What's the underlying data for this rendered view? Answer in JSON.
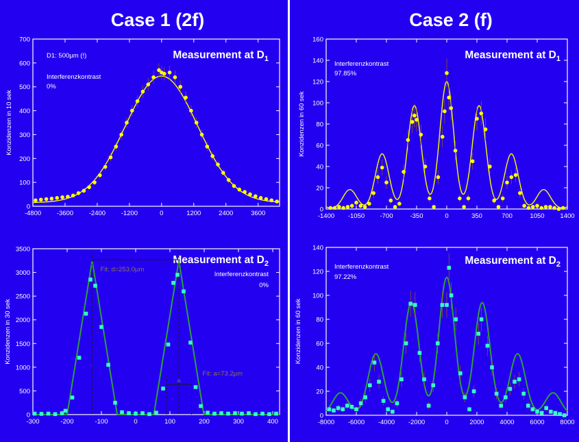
{
  "colors": {
    "background": "#2400f0",
    "frame": "#ffffff",
    "marker_d1": "#ffff00",
    "marker_d2": "#33ffc8",
    "line_d2": "#2e9e3a",
    "dashed_marker": "#1a1a1a"
  },
  "titles": {
    "case1": "Case 1 (2f)",
    "case2": "Case 2 (f)"
  },
  "chart_data": [
    {
      "id": "case1_d1",
      "type": "scatter",
      "title": "Measurement at D",
      "title_sub": "1",
      "ylabel": "Konzidenzen in 10 sek",
      "xlabel": "",
      "xlim": [
        -4800,
        4400
      ],
      "ylim": [
        0,
        700
      ],
      "xticks": [
        "-4800",
        "-3600",
        "-2400",
        "-1200",
        "0",
        "1200",
        "2400",
        "3600"
      ],
      "yticks": [
        "0",
        "100",
        "200",
        "300",
        "400",
        "500",
        "600",
        "700"
      ],
      "annotations": [
        "D1: 500µm (!)",
        "Interferenzkontrast",
        "0%"
      ],
      "marker": "circle",
      "model": {
        "kind": "gaussian",
        "amplitude": 530,
        "center": 0,
        "sigma": 1350,
        "baseline": 15
      },
      "points": [
        [
          -4700,
          25
        ],
        [
          -4500,
          28
        ],
        [
          -4300,
          30
        ],
        [
          -4100,
          32
        ],
        [
          -3900,
          35
        ],
        [
          -3700,
          38
        ],
        [
          -3500,
          40
        ],
        [
          -3300,
          45
        ],
        [
          -3100,
          55
        ],
        [
          -2900,
          65
        ],
        [
          -2700,
          80
        ],
        [
          -2500,
          100
        ],
        [
          -2300,
          130
        ],
        [
          -2100,
          165
        ],
        [
          -1900,
          205
        ],
        [
          -1700,
          250
        ],
        [
          -1500,
          300
        ],
        [
          -1300,
          350
        ],
        [
          -1100,
          400
        ],
        [
          -900,
          440
        ],
        [
          -700,
          480
        ],
        [
          -500,
          510
        ],
        [
          -300,
          540
        ],
        [
          -100,
          570
        ],
        [
          0,
          560
        ],
        [
          100,
          555
        ],
        [
          300,
          560
        ],
        [
          500,
          540
        ],
        [
          700,
          500
        ],
        [
          900,
          455
        ],
        [
          1100,
          400
        ],
        [
          1300,
          350
        ],
        [
          1500,
          300
        ],
        [
          1700,
          250
        ],
        [
          1900,
          210
        ],
        [
          2100,
          175
        ],
        [
          2300,
          140
        ],
        [
          2500,
          110
        ],
        [
          2700,
          85
        ],
        [
          2900,
          70
        ],
        [
          3100,
          60
        ],
        [
          3300,
          50
        ],
        [
          3500,
          42
        ],
        [
          3700,
          35
        ],
        [
          3900,
          30
        ],
        [
          4100,
          25
        ],
        [
          4300,
          20
        ]
      ]
    },
    {
      "id": "case2_d1",
      "type": "scatter",
      "title": "Measurement at D",
      "title_sub": "1",
      "ylabel": "Konzidenzen in 60 sek",
      "xlabel": "",
      "xlim": [
        -1400,
        1400
      ],
      "ylim": [
        0,
        160
      ],
      "xticks": [
        "-1400",
        "-1050",
        "-700",
        "-350",
        "0",
        "350",
        "700",
        "1050",
        "1400"
      ],
      "yticks": [
        "0",
        "20",
        "40",
        "60",
        "80",
        "100",
        "120",
        "140",
        "160"
      ],
      "annotations": [
        "Interferenzkontrast",
        "97.85%"
      ],
      "marker": "circle",
      "model": {
        "kind": "fringes",
        "spacing": 375,
        "width": 80,
        "env_sigma": 580,
        "amplitude": 120,
        "center": 0
      },
      "points": [
        [
          -1350,
          1
        ],
        [
          -1300,
          1
        ],
        [
          -1250,
          2
        ],
        [
          -1200,
          1
        ],
        [
          -1150,
          2
        ],
        [
          -1100,
          3
        ],
        [
          -1050,
          6
        ],
        [
          -1000,
          3
        ],
        [
          -950,
          2
        ],
        [
          -900,
          5
        ],
        [
          -850,
          15
        ],
        [
          -800,
          30
        ],
        [
          -750,
          39
        ],
        [
          -700,
          25
        ],
        [
          -650,
          8
        ],
        [
          -600,
          2
        ],
        [
          -550,
          5
        ],
        [
          -500,
          35
        ],
        [
          -450,
          65
        ],
        [
          -400,
          82
        ],
        [
          -375,
          88
        ],
        [
          -350,
          84
        ],
        [
          -300,
          70
        ],
        [
          -250,
          40
        ],
        [
          -200,
          10
        ],
        [
          -150,
          2
        ],
        [
          -100,
          30
        ],
        [
          -50,
          68
        ],
        [
          -25,
          92
        ],
        [
          0,
          128
        ],
        [
          25,
          105
        ],
        [
          50,
          95
        ],
        [
          100,
          55
        ],
        [
          150,
          10
        ],
        [
          200,
          2
        ],
        [
          250,
          10
        ],
        [
          300,
          45
        ],
        [
          350,
          85
        ],
        [
          400,
          90
        ],
        [
          450,
          75
        ],
        [
          500,
          40
        ],
        [
          550,
          8
        ],
        [
          600,
          2
        ],
        [
          650,
          10
        ],
        [
          700,
          25
        ],
        [
          750,
          30
        ],
        [
          800,
          32
        ],
        [
          850,
          15
        ],
        [
          900,
          3
        ],
        [
          950,
          1
        ],
        [
          1000,
          2
        ],
        [
          1050,
          3
        ],
        [
          1100,
          1
        ],
        [
          1150,
          2
        ],
        [
          1200,
          2
        ],
        [
          1250,
          1
        ],
        [
          1300,
          0
        ],
        [
          1350,
          1
        ]
      ]
    },
    {
      "id": "case1_d2",
      "type": "line",
      "title": "Measurement at D",
      "title_sub": "2",
      "ylabel": "Konzidenzen in 30 sek",
      "xlabel": "",
      "xlim": [
        -300,
        420
      ],
      "ylim": [
        0,
        3500
      ],
      "xticks": [
        "-300",
        "-200",
        "-100",
        "0",
        "100",
        "200",
        "300",
        "400"
      ],
      "yticks": [
        "0",
        "500",
        "1000",
        "1500",
        "2000",
        "2500",
        "3000",
        "3500"
      ],
      "annotations": [
        "Fit: d=253.0µm",
        "Interferenzkontrast",
        "0%",
        "Fit: a=73.2µm",
        "a"
      ],
      "marker": "square",
      "model": {
        "kind": "triangles",
        "centers": [
          -127,
          126
        ],
        "halfwidth": 73,
        "height": 3250
      },
      "points": [
        [
          -295,
          20
        ],
        [
          -275,
          15
        ],
        [
          -255,
          20
        ],
        [
          -235,
          10
        ],
        [
          -215,
          30
        ],
        [
          -205,
          80
        ],
        [
          -185,
          360
        ],
        [
          -165,
          1200
        ],
        [
          -145,
          2130
        ],
        [
          -132,
          2850
        ],
        [
          -118,
          2720
        ],
        [
          -100,
          1850
        ],
        [
          -80,
          1050
        ],
        [
          -60,
          250
        ],
        [
          -40,
          50
        ],
        [
          -20,
          30
        ],
        [
          0,
          20
        ],
        [
          20,
          30
        ],
        [
          40,
          10
        ],
        [
          60,
          40
        ],
        [
          80,
          550
        ],
        [
          95,
          1480
        ],
        [
          110,
          2780
        ],
        [
          122,
          2950
        ],
        [
          140,
          2600
        ],
        [
          160,
          1520
        ],
        [
          175,
          580
        ],
        [
          190,
          180
        ],
        [
          210,
          40
        ],
        [
          230,
          20
        ],
        [
          250,
          30
        ],
        [
          270,
          20
        ],
        [
          290,
          30
        ],
        [
          310,
          20
        ],
        [
          330,
          30
        ],
        [
          350,
          10
        ],
        [
          370,
          20
        ],
        [
          390,
          10
        ],
        [
          410,
          20
        ]
      ]
    },
    {
      "id": "case2_d2",
      "type": "line",
      "title": "Measurement at D",
      "title_sub": "2",
      "ylabel": "Konzidenzen in 60 sek",
      "xlabel": "",
      "xlim": [
        -8000,
        8000
      ],
      "ylim": [
        0,
        140
      ],
      "xticks": [
        "-8000",
        "-6000",
        "-4000",
        "-2000",
        "0",
        "2000",
        "4000",
        "6000",
        "8000"
      ],
      "yticks": [
        "0",
        "20",
        "40",
        "60",
        "80",
        "100",
        "120",
        "140"
      ],
      "annotations": [
        "Interferenzkontrast",
        "97.22%"
      ],
      "marker": "square",
      "model": {
        "kind": "fringes",
        "spacing": 2350,
        "width": 520,
        "env_sigma": 3700,
        "amplitude": 115,
        "center": 0
      },
      "points": [
        [
          -7800,
          5
        ],
        [
          -7500,
          4
        ],
        [
          -7200,
          6
        ],
        [
          -6900,
          5
        ],
        [
          -6600,
          8
        ],
        [
          -6300,
          7
        ],
        [
          -6000,
          5
        ],
        [
          -5700,
          10
        ],
        [
          -5400,
          15
        ],
        [
          -5100,
          25
        ],
        [
          -4800,
          44
        ],
        [
          -4500,
          28
        ],
        [
          -4200,
          12
        ],
        [
          -3900,
          5
        ],
        [
          -3600,
          3
        ],
        [
          -3300,
          10
        ],
        [
          -3000,
          30
        ],
        [
          -2700,
          60
        ],
        [
          -2400,
          93
        ],
        [
          -2100,
          92
        ],
        [
          -1800,
          52
        ],
        [
          -1500,
          30
        ],
        [
          -1200,
          8
        ],
        [
          -900,
          25
        ],
        [
          -600,
          60
        ],
        [
          -300,
          92
        ],
        [
          0,
          92
        ],
        [
          150,
          123
        ],
        [
          300,
          100
        ],
        [
          600,
          80
        ],
        [
          900,
          35
        ],
        [
          1200,
          15
        ],
        [
          1500,
          5
        ],
        [
          1800,
          20
        ],
        [
          2100,
          68
        ],
        [
          2300,
          80
        ],
        [
          2700,
          58
        ],
        [
          3000,
          40
        ],
        [
          3300,
          18
        ],
        [
          3600,
          8
        ],
        [
          3900,
          15
        ],
        [
          4200,
          22
        ],
        [
          4500,
          28
        ],
        [
          4800,
          30
        ],
        [
          5100,
          18
        ],
        [
          5400,
          8
        ],
        [
          5700,
          5
        ],
        [
          6000,
          3
        ],
        [
          6300,
          2
        ],
        [
          6600,
          6
        ],
        [
          6900,
          3
        ],
        [
          7200,
          2
        ],
        [
          7500,
          1
        ],
        [
          7800,
          0
        ]
      ]
    }
  ]
}
